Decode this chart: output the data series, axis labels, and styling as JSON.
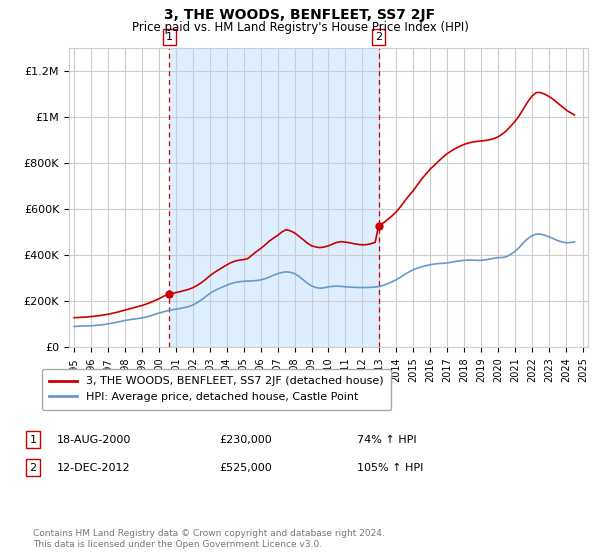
{
  "title": "3, THE WOODS, BENFLEET, SS7 2JF",
  "subtitle": "Price paid vs. HM Land Registry's House Price Index (HPI)",
  "ylim": [
    0,
    1300000
  ],
  "yticks": [
    0,
    200000,
    400000,
    600000,
    800000,
    1000000,
    1200000
  ],
  "ytick_labels": [
    "£0",
    "£200K",
    "£400K",
    "£600K",
    "£800K",
    "£1M",
    "£1.2M"
  ],
  "legend_line1": "3, THE WOODS, BENFLEET, SS7 2JF (detached house)",
  "legend_line2": "HPI: Average price, detached house, Castle Point",
  "annotation1_label": "1",
  "annotation1_date": "18-AUG-2000",
  "annotation1_price": "£230,000",
  "annotation1_hpi": "74% ↑ HPI",
  "annotation1_year": 2000.625,
  "annotation1_value": 230000,
  "annotation2_label": "2",
  "annotation2_date": "12-DEC-2012",
  "annotation2_price": "£525,000",
  "annotation2_hpi": "105% ↑ HPI",
  "annotation2_year": 2012.95,
  "annotation2_value": 525000,
  "copyright_text": "Contains HM Land Registry data © Crown copyright and database right 2024.\nThis data is licensed under the Open Government Licence v3.0.",
  "line_color_property": "#cc0000",
  "line_color_hpi": "#6699cc",
  "shade_color": "#ddeeff",
  "dashed_line_color": "#cc0000",
  "background_color": "#ffffff",
  "grid_color": "#cccccc",
  "hpi_data": {
    "years": [
      1995.0,
      1995.25,
      1995.5,
      1995.75,
      1996.0,
      1996.25,
      1996.5,
      1996.75,
      1997.0,
      1997.25,
      1997.5,
      1997.75,
      1998.0,
      1998.25,
      1998.5,
      1998.75,
      1999.0,
      1999.25,
      1999.5,
      1999.75,
      2000.0,
      2000.25,
      2000.5,
      2000.75,
      2001.0,
      2001.25,
      2001.5,
      2001.75,
      2002.0,
      2002.25,
      2002.5,
      2002.75,
      2003.0,
      2003.25,
      2003.5,
      2003.75,
      2004.0,
      2004.25,
      2004.5,
      2004.75,
      2005.0,
      2005.25,
      2005.5,
      2005.75,
      2006.0,
      2006.25,
      2006.5,
      2006.75,
      2007.0,
      2007.25,
      2007.5,
      2007.75,
      2008.0,
      2008.25,
      2008.5,
      2008.75,
      2009.0,
      2009.25,
      2009.5,
      2009.75,
      2010.0,
      2010.25,
      2010.5,
      2010.75,
      2011.0,
      2011.25,
      2011.5,
      2011.75,
      2012.0,
      2012.25,
      2012.5,
      2012.75,
      2013.0,
      2013.25,
      2013.5,
      2013.75,
      2014.0,
      2014.25,
      2014.5,
      2014.75,
      2015.0,
      2015.25,
      2015.5,
      2015.75,
      2016.0,
      2016.25,
      2016.5,
      2016.75,
      2017.0,
      2017.25,
      2017.5,
      2017.75,
      2018.0,
      2018.25,
      2018.5,
      2018.75,
      2019.0,
      2019.25,
      2019.5,
      2019.75,
      2020.0,
      2020.25,
      2020.5,
      2020.75,
      2021.0,
      2021.25,
      2021.5,
      2021.75,
      2022.0,
      2022.25,
      2022.5,
      2022.75,
      2023.0,
      2023.25,
      2023.5,
      2023.75,
      2024.0,
      2024.25,
      2024.5
    ],
    "values": [
      90000,
      91000,
      92000,
      92500,
      93000,
      94500,
      96000,
      98000,
      101000,
      104500,
      108000,
      112000,
      116000,
      119000,
      122000,
      124000,
      127000,
      131000,
      136000,
      142000,
      148000,
      153000,
      158000,
      162000,
      165000,
      168000,
      172000,
      176000,
      183000,
      193000,
      205000,
      219000,
      233000,
      244000,
      253000,
      261000,
      269000,
      276000,
      281000,
      284000,
      286000,
      287000,
      288000,
      289000,
      292000,
      297000,
      304000,
      312000,
      319000,
      324000,
      327000,
      325000,
      319000,
      308000,
      293000,
      278000,
      266000,
      259000,
      256000,
      258000,
      262000,
      264000,
      265000,
      264000,
      262000,
      261000,
      260000,
      259000,
      259000,
      259000,
      260000,
      261000,
      264000,
      269000,
      276000,
      284000,
      293000,
      304000,
      316000,
      327000,
      336000,
      343000,
      349000,
      354000,
      358000,
      361000,
      363000,
      364000,
      366000,
      369000,
      372000,
      375000,
      377000,
      378000,
      378000,
      377000,
      377000,
      379000,
      382000,
      386000,
      389000,
      389000,
      393000,
      403000,
      416000,
      433000,
      454000,
      471000,
      484000,
      491000,
      491000,
      486000,
      479000,
      471000,
      463000,
      457000,
      453000,
      454000,
      457000
    ]
  },
  "property_data": {
    "years": [
      1995.0,
      1995.25,
      1995.5,
      1995.75,
      1996.0,
      1996.25,
      1996.5,
      1996.75,
      1997.0,
      1997.25,
      1997.5,
      1997.75,
      1998.0,
      1998.25,
      1998.5,
      1998.75,
      1999.0,
      1999.25,
      1999.5,
      1999.75,
      2000.0,
      2000.25,
      2000.5,
      2000.625,
      2000.75,
      2001.0,
      2001.25,
      2001.5,
      2001.75,
      2002.0,
      2002.25,
      2002.5,
      2002.75,
      2003.0,
      2003.25,
      2003.5,
      2003.75,
      2004.0,
      2004.25,
      2004.5,
      2004.75,
      2005.0,
      2005.25,
      2005.5,
      2005.75,
      2006.0,
      2006.25,
      2006.5,
      2006.75,
      2007.0,
      2007.25,
      2007.5,
      2007.75,
      2008.0,
      2008.25,
      2008.5,
      2008.75,
      2009.0,
      2009.25,
      2009.5,
      2009.75,
      2010.0,
      2010.25,
      2010.5,
      2010.75,
      2011.0,
      2011.25,
      2011.5,
      2011.75,
      2012.0,
      2012.25,
      2012.5,
      2012.75,
      2012.95,
      2013.0,
      2013.25,
      2013.5,
      2013.75,
      2014.0,
      2014.25,
      2014.5,
      2014.75,
      2015.0,
      2015.25,
      2015.5,
      2015.75,
      2016.0,
      2016.25,
      2016.5,
      2016.75,
      2017.0,
      2017.25,
      2017.5,
      2017.75,
      2018.0,
      2018.25,
      2018.5,
      2018.75,
      2019.0,
      2019.25,
      2019.5,
      2019.75,
      2020.0,
      2020.25,
      2020.5,
      2020.75,
      2021.0,
      2021.25,
      2021.5,
      2021.75,
      2022.0,
      2022.25,
      2022.5,
      2022.75,
      2023.0,
      2023.25,
      2023.5,
      2023.75,
      2024.0,
      2024.25,
      2024.5
    ],
    "values": [
      128000,
      129000,
      130000,
      131000,
      133000,
      135000,
      137000,
      140000,
      143000,
      147000,
      151000,
      156000,
      161000,
      166000,
      171000,
      176000,
      181000,
      187000,
      194000,
      202000,
      210000,
      220000,
      228000,
      230000,
      233000,
      237000,
      241000,
      246000,
      251000,
      258000,
      268000,
      280000,
      294000,
      310000,
      323000,
      335000,
      346000,
      357000,
      367000,
      374000,
      378000,
      380000,
      385000,
      400000,
      415000,
      428000,
      443000,
      460000,
      473000,
      485000,
      500000,
      510000,
      505000,
      496000,
      482000,
      467000,
      452000,
      440000,
      435000,
      432000,
      435000,
      440000,
      448000,
      455000,
      458000,
      456000,
      453000,
      449000,
      446000,
      444000,
      445000,
      449000,
      455000,
      525000,
      530000,
      540000,
      555000,
      570000,
      588000,
      610000,
      635000,
      658000,
      680000,
      705000,
      730000,
      752000,
      773000,
      790000,
      808000,
      825000,
      840000,
      852000,
      863000,
      872000,
      880000,
      886000,
      890000,
      893000,
      895000,
      897000,
      900000,
      905000,
      913000,
      925000,
      940000,
      960000,
      980000,
      1005000,
      1035000,
      1065000,
      1090000,
      1105000,
      1105000,
      1098000,
      1088000,
      1075000,
      1060000,
      1045000,
      1030000,
      1018000,
      1008000
    ]
  }
}
